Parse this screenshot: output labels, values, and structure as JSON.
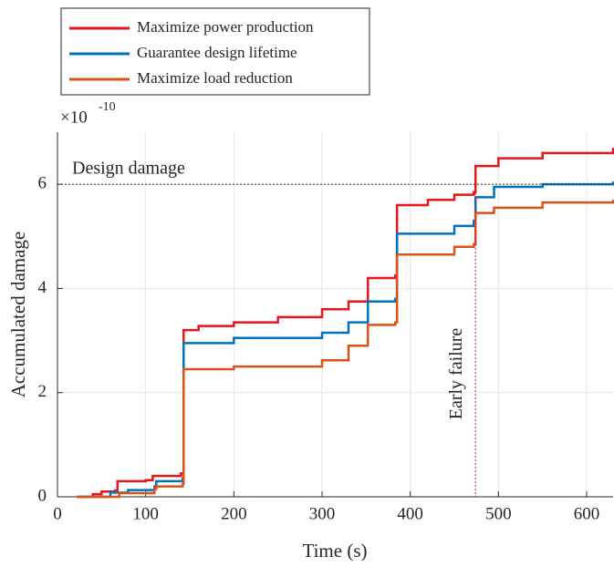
{
  "chart_data": {
    "type": "line",
    "step": true,
    "xlabel": "Time (s)",
    "ylabel": "Accumulated damage",
    "y_exponent_base": "×10",
    "y_exponent": "-10",
    "xlim": [
      0,
      630
    ],
    "ylim": [
      0,
      7
    ],
    "xticks": [
      0,
      100,
      200,
      300,
      400,
      500,
      600
    ],
    "yticks": [
      0,
      2,
      4,
      6
    ],
    "grid": true,
    "series": [
      {
        "name": "Maximize power production",
        "color": "#e8161c",
        "x": [
          22,
          40,
          50,
          65,
          68,
          100,
          108,
          140,
          143,
          160,
          200,
          250,
          300,
          330,
          352,
          383,
          385,
          420,
          450,
          472,
          474,
          500,
          550,
          630
        ],
        "values": [
          0,
          0.05,
          0.1,
          0.12,
          0.3,
          0.32,
          0.4,
          0.45,
          3.2,
          3.28,
          3.35,
          3.45,
          3.6,
          3.75,
          4.2,
          4.25,
          5.6,
          5.7,
          5.8,
          5.85,
          6.35,
          6.5,
          6.6,
          6.7
        ]
      },
      {
        "name": "Guarantee design lifetime",
        "color": "#0072bd",
        "x": [
          22,
          60,
          80,
          110,
          112,
          142,
          143,
          200,
          300,
          330,
          352,
          383,
          385,
          450,
          472,
          474,
          495,
          550,
          630
        ],
        "values": [
          0,
          0.08,
          0.13,
          0.2,
          0.3,
          0.35,
          2.95,
          3.05,
          3.15,
          3.35,
          3.75,
          3.8,
          5.05,
          5.2,
          5.3,
          5.75,
          5.95,
          6.0,
          6.05
        ]
      },
      {
        "name": "Maximize load reduction",
        "color": "#d95319",
        "x": [
          22,
          70,
          110,
          112,
          142,
          143,
          200,
          300,
          330,
          352,
          383,
          385,
          450,
          472,
          474,
          495,
          550,
          630
        ],
        "values": [
          0,
          0.07,
          0.15,
          0.2,
          0.25,
          2.45,
          2.5,
          2.62,
          2.9,
          3.3,
          3.35,
          4.65,
          4.8,
          4.85,
          5.45,
          5.55,
          5.65,
          5.7
        ]
      }
    ],
    "annotations": [
      {
        "text": "Design damage",
        "y": 6,
        "color": "#333333"
      },
      {
        "text": "Early failure",
        "x": 474,
        "color": "#e8161c"
      }
    ]
  }
}
